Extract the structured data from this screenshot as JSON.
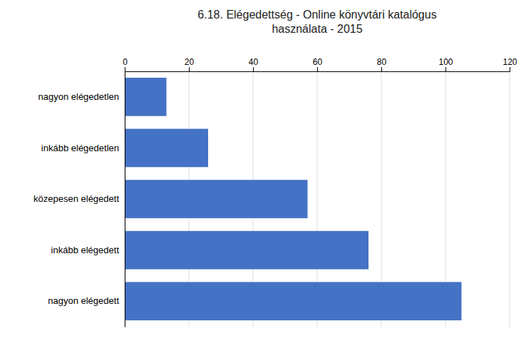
{
  "chart_data": {
    "type": "bar",
    "orientation": "horizontal",
    "title": "6.18.  Elégedettség - Online könyvtári katalógus\nhasználata - 2015",
    "categories": [
      "nagyon elégedetlen",
      "inkább elégedetlen",
      "közepesen elégedett",
      "inkább elégedett",
      "nagyon elégedett"
    ],
    "values": [
      13,
      26,
      57,
      76,
      105
    ],
    "color": "#4472C4",
    "xlim": [
      0,
      120
    ],
    "xticks": [
      0,
      20,
      40,
      60,
      80,
      100,
      120
    ],
    "grid": true
  }
}
